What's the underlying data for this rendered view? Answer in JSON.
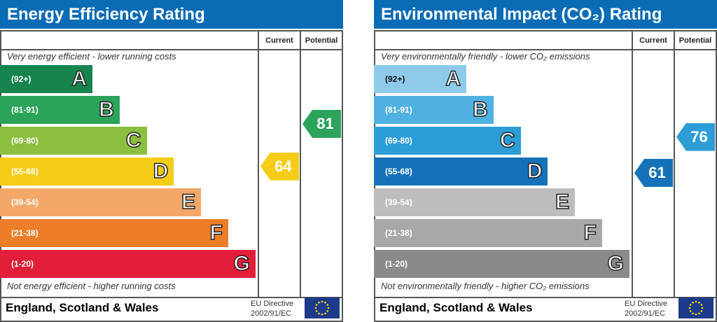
{
  "chart_data": [
    {
      "type": "bar",
      "title": "Energy Efficiency Rating",
      "columns": [
        "Current",
        "Potential"
      ],
      "top_note": "Very energy efficient - lower running costs",
      "bottom_note": "Not energy efficient - higher running costs",
      "bands": [
        {
          "letter": "A",
          "range": "(92+)",
          "low": 92,
          "high": 100,
          "color": "#17844e"
        },
        {
          "letter": "B",
          "range": "(81-91)",
          "low": 81,
          "high": 91,
          "color": "#2ca35a"
        },
        {
          "letter": "C",
          "range": "(69-80)",
          "low": 69,
          "high": 80,
          "color": "#8cbe3f"
        },
        {
          "letter": "D",
          "range": "(55-68)",
          "low": 55,
          "high": 68,
          "color": "#f5cc17"
        },
        {
          "letter": "E",
          "range": "(39-54)",
          "low": 39,
          "high": 54,
          "color": "#f3a86a"
        },
        {
          "letter": "F",
          "range": "(21-38)",
          "low": 21,
          "high": 38,
          "color": "#ec7e2a"
        },
        {
          "letter": "G",
          "range": "(1-20)",
          "low": 1,
          "high": 20,
          "color": "#e21e3b"
        }
      ],
      "current": 64,
      "potential": 81,
      "current_color": "#f5cc17",
      "potential_color": "#2ca35a",
      "footer": "England, Scotland & Wales",
      "directive": [
        "EU Directive",
        "2002/91/EC"
      ]
    },
    {
      "type": "bar",
      "title": "Environmental Impact (CO₂) Rating",
      "columns": [
        "Current",
        "Potential"
      ],
      "top_note": "Very environmentally friendly - lower CO₂ emissions",
      "bottom_note": "Not environmentally friendly - higher CO₂ emissions",
      "bands": [
        {
          "letter": "A",
          "range": "(92+)",
          "low": 92,
          "high": 100,
          "color": "#8ecbea"
        },
        {
          "letter": "B",
          "range": "(81-91)",
          "low": 81,
          "high": 91,
          "color": "#4fb0e2"
        },
        {
          "letter": "C",
          "range": "(69-80)",
          "low": 69,
          "high": 80,
          "color": "#2d9dd6"
        },
        {
          "letter": "D",
          "range": "(55-68)",
          "low": 55,
          "high": 68,
          "color": "#1572b9"
        },
        {
          "letter": "E",
          "range": "(39-54)",
          "low": 39,
          "high": 54,
          "color": "#bdbdbd"
        },
        {
          "letter": "F",
          "range": "(21-38)",
          "low": 21,
          "high": 38,
          "color": "#a8a8a8"
        },
        {
          "letter": "G",
          "range": "(1-20)",
          "low": 1,
          "high": 20,
          "color": "#8a8a8a"
        }
      ],
      "current": 61,
      "potential": 76,
      "current_color": "#1572b9",
      "potential_color": "#2d9dd6",
      "footer": "England, Scotland & Wales",
      "directive": [
        "EU Directive",
        "2002/91/EC"
      ]
    }
  ]
}
